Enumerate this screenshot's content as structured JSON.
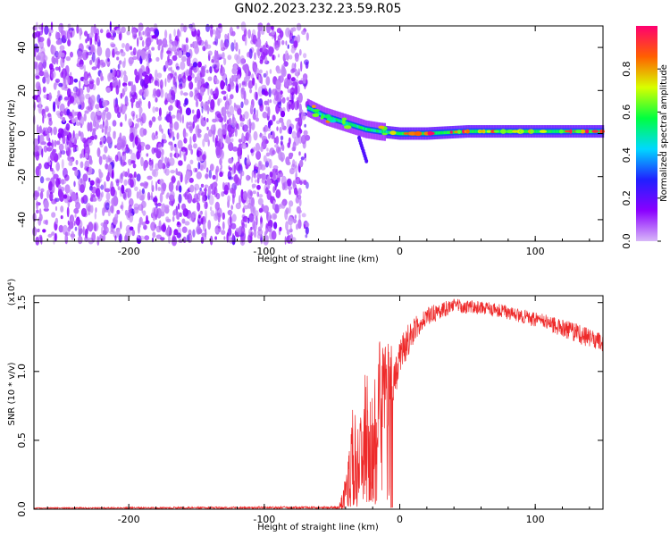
{
  "title": "GN02.2023.232.23.59.R05",
  "chart_data": [
    {
      "type": "heatmap",
      "xlabel": "Height of straight line (km)",
      "ylabel": "Frequency (Hz)",
      "xlim": [
        -270,
        150
      ],
      "ylim": [
        -50,
        50
      ],
      "xticks": [
        -200,
        -100,
        0,
        100
      ],
      "yticks": [
        -40,
        -20,
        0,
        20,
        40
      ],
      "xtick_labels": [
        "-200",
        "-100",
        "0",
        "100"
      ],
      "ytick_labels": [
        "-40",
        "-20",
        "0",
        "20",
        "40"
      ],
      "colorbar": {
        "label": "Normalized spectral amplitude",
        "range": [
          0,
          1
        ],
        "ticks": [
          "0.0",
          "0.2",
          "0.4",
          "0.6",
          "0.8"
        ],
        "colors": [
          "#d8b8f8",
          "#8a00ff",
          "#2020ff",
          "#00d8ff",
          "#00ff40",
          "#d8ff00",
          "#ff6000",
          "#ff0070"
        ]
      },
      "noise_region_x": [
        -270,
        -68
      ],
      "signal_track": {
        "x": [
          -68,
          -55,
          -45,
          -35,
          -25,
          -15,
          0,
          20,
          50,
          100,
          150
        ],
        "freq": [
          12,
          8,
          6,
          4,
          2,
          1,
          0,
          0,
          1,
          1,
          1
        ]
      }
    },
    {
      "type": "line",
      "xlabel": "Height of straight line (km)",
      "ylabel": "SNR (10 * v/v)",
      "y_scale_label": "(x10⁴)",
      "xlim": [
        -270,
        150
      ],
      "ylim": [
        0,
        15500
      ],
      "xticks": [
        -200,
        -100,
        0,
        100
      ],
      "yticks": [
        0,
        5000,
        10000,
        15000
      ],
      "xtick_labels": [
        "-200",
        "-100",
        "0",
        "100"
      ],
      "ytick_labels": [
        "0.0",
        "0.5",
        "1.0",
        "1.5"
      ],
      "color": "#ee2a2a",
      "envelope": {
        "x": [
          -270,
          -45,
          -40,
          -35,
          -30,
          -25,
          -20,
          -15,
          -10,
          -5,
          0,
          10,
          20,
          30,
          40,
          50,
          60,
          75,
          90,
          110,
          130,
          150
        ],
        "y": [
          80,
          120,
          1200,
          3500,
          3500,
          6500,
          4500,
          9000,
          8500,
          10000,
          11000,
          13000,
          14000,
          14400,
          14800,
          14700,
          14600,
          14400,
          14000,
          13500,
          12800,
          12000
        ],
        "noise": [
          40,
          100,
          1200,
          3800,
          3500,
          3800,
          3800,
          3500,
          3500,
          2500,
          1500,
          1000,
          700,
          600,
          500,
          500,
          500,
          500,
          500,
          600,
          700,
          700
        ]
      }
    }
  ]
}
